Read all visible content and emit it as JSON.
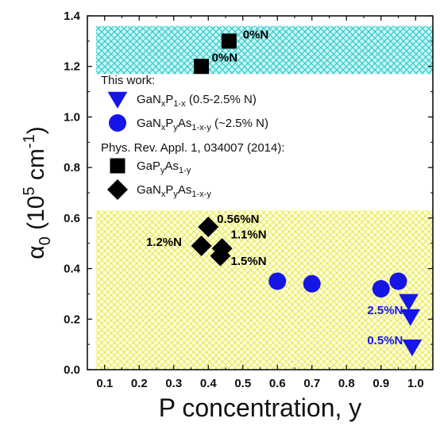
{
  "chart_data": {
    "type": "scatter",
    "xlabel": "P concentration, y",
    "ylabel": {
      "base": "α",
      "sub": "0",
      "rest": " (10",
      "sup1": "5",
      "unit": " cm",
      "sup2": "-1",
      "close": ")"
    },
    "xlim": [
      0.05,
      1.05
    ],
    "ylim": [
      0.0,
      1.4
    ],
    "x_ticks": [
      "0.1",
      "0.2",
      "0.3",
      "0.4",
      "0.5",
      "0.6",
      "0.7",
      "0.8",
      "0.9",
      "1.0"
    ],
    "x_tick_values": [
      0.1,
      0.2,
      0.3,
      0.4,
      0.5,
      0.6,
      0.7,
      0.8,
      0.9,
      1.0
    ],
    "y_ticks": [
      "0.0",
      "0.2",
      "0.4",
      "0.6",
      "0.8",
      "1.0",
      "1.2",
      "1.4"
    ],
    "y_tick_values": [
      0.0,
      0.2,
      0.4,
      0.6,
      0.8,
      1.0,
      1.2,
      1.4
    ],
    "grid": false,
    "bands": [
      {
        "y_range": [
          1.17,
          1.36
        ],
        "color": "#33cccc",
        "pattern": "crosshatch"
      },
      {
        "y_range": [
          0.0,
          0.63
        ],
        "color": "#e6e64d",
        "pattern": "crosshatch"
      }
    ],
    "series": [
      {
        "marker": "triangle-down",
        "color": "#1515e6",
        "points": [
          [
            0.98,
            0.27
          ],
          [
            0.985,
            0.21
          ],
          [
            0.99,
            0.09
          ]
        ]
      },
      {
        "marker": "circle",
        "color": "#1515e6",
        "points": [
          [
            0.6,
            0.35
          ],
          [
            0.7,
            0.34
          ],
          [
            0.9,
            0.32
          ],
          [
            0.95,
            0.35
          ]
        ]
      },
      {
        "marker": "square",
        "color": "#000000",
        "points": [
          [
            0.38,
            1.2
          ],
          [
            0.46,
            1.3
          ]
        ]
      },
      {
        "marker": "diamond",
        "color": "#000000",
        "points": [
          [
            0.4,
            0.565
          ],
          [
            0.38,
            0.49
          ],
          [
            0.44,
            0.48
          ],
          [
            0.435,
            0.45
          ]
        ]
      }
    ],
    "legend": {
      "placement": "top-left",
      "header1": "This work:",
      "header2": "Phys. Rev. Appl. 1, 034007 (2014):",
      "entries": [
        {
          "marker": "triangle-down",
          "color": "#1515e6",
          "parts": [
            [
              "Ga",
              ""
            ],
            [
              "N",
              ""
            ],
            [
              "x",
              "sub"
            ],
            [
              "P",
              ""
            ],
            [
              "1-x",
              "sub"
            ],
            [
              " (0.5-2.5% N)",
              ""
            ]
          ]
        },
        {
          "marker": "circle",
          "color": "#1515e6",
          "parts": [
            [
              "Ga",
              ""
            ],
            [
              "N",
              ""
            ],
            [
              "x",
              "sub"
            ],
            [
              "P",
              ""
            ],
            [
              "y",
              "sub"
            ],
            [
              "As",
              ""
            ],
            [
              "1-x-y",
              "sub"
            ],
            [
              " (~2.5% N)",
              ""
            ]
          ]
        },
        {
          "marker": "square",
          "color": "#000000",
          "parts": [
            [
              "Ga",
              ""
            ],
            [
              "P",
              ""
            ],
            [
              "y",
              "sub"
            ],
            [
              "As",
              ""
            ],
            [
              "1-y",
              "sub"
            ]
          ]
        },
        {
          "marker": "diamond",
          "color": "#000000",
          "parts": [
            [
              "Ga",
              ""
            ],
            [
              "N",
              ""
            ],
            [
              "x",
              "sub"
            ],
            [
              "P",
              ""
            ],
            [
              "y",
              "sub"
            ],
            [
              "As",
              ""
            ],
            [
              "1-x-y",
              "sub"
            ]
          ]
        }
      ]
    },
    "annotations": [
      {
        "text": "0%N",
        "x": 0.5,
        "y": 1.31,
        "color": "#000000"
      },
      {
        "text": "0%N",
        "x": 0.41,
        "y": 1.22,
        "color": "#000000"
      },
      {
        "text": "0.56%N",
        "x": 0.425,
        "y": 0.58,
        "color": "#000000"
      },
      {
        "text": "1.1%N",
        "x": 0.465,
        "y": 0.52,
        "color": "#000000"
      },
      {
        "text": "1.2%N",
        "x": 0.22,
        "y": 0.49,
        "color": "#000000"
      },
      {
        "text": "1.5%N",
        "x": 0.465,
        "y": 0.415,
        "color": "#000000"
      },
      {
        "text": "2.5%N",
        "x": 0.86,
        "y": 0.22,
        "color": "#1515e6"
      },
      {
        "text": "0.5%N",
        "x": 0.86,
        "y": 0.1,
        "color": "#1515e6"
      }
    ]
  }
}
